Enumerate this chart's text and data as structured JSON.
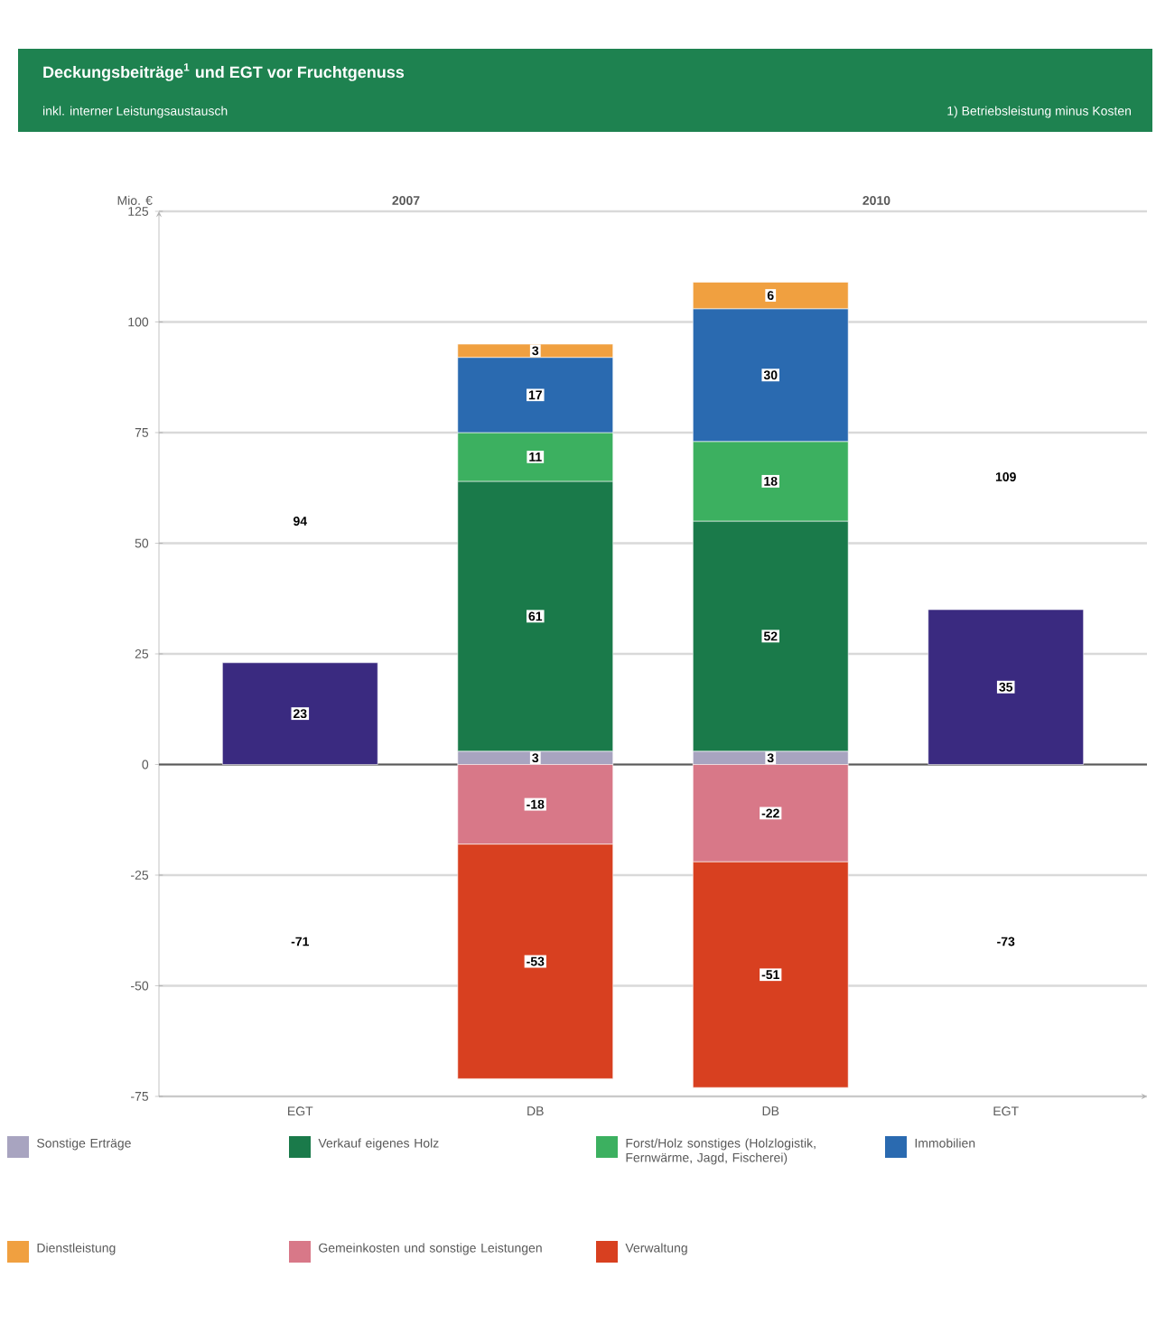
{
  "chart_data": {
    "type": "bar",
    "stacked": true,
    "title": "Deckungsbeiträge$^{1}$ und EGT vor Fruchtgenuss",
    "subtitle": "inkl. interner Leistungsaustausch",
    "ylabel": "Mio. €",
    "categories": [
      "EGT",
      "DB",
      "DB",
      "EGT"
    ],
    "series": [
      {
        "name": "Sonstige Erträge",
        "color": "#a8a4c0",
        "values": [
          null,
          3,
          3,
          null
        ]
      },
      {
        "name": "Verkauf eigenes Holz",
        "color": "#1a7a4a",
        "values": [
          null,
          61,
          52,
          null
        ]
      },
      {
        "name": "Forst/Holz sonstiges (Holzlogistik, Fernwärme, Jagd, Fischerei)",
        "color": "#3cb060",
        "values": [
          null,
          11,
          18,
          null
        ]
      },
      {
        "name": "Immobilien",
        "color": "#2a6ab0",
        "values": [
          null,
          17,
          30,
          null
        ]
      },
      {
        "name": "Dienstleistung",
        "color": "#f0a040",
        "values": [
          null,
          3,
          6,
          null
        ]
      },
      {
        "name": "Gemeinkosten und sonstige Leistungen",
        "color": "#d87888",
        "values": [
          null,
          -18,
          -22,
          null
        ]
      },
      {
        "name": "Verwaltung",
        "color": "#d84020",
        "values": [
          null,
          -53,
          -51,
          null
        ]
      },
      {
        "color": "#3a2a80",
        "values": [
          23,
          null,
          null,
          35
        ]
      }
    ],
    "ylim": [
      -75,
      125
    ],
    "yticks": [
      -75,
      -50,
      -25,
      0,
      25,
      50,
      75,
      100,
      125
    ],
    "grid": "y",
    "legend": "bottom",
    "data_labels": true,
    "annotations": [
      "2007",
      "2010",
      "94",
      "-71",
      "109",
      "-73",
      "1) Betriebsleistung minus Kosten"
    ]
  }
}
